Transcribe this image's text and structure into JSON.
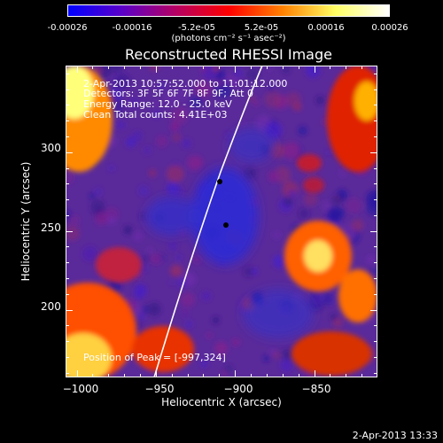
{
  "colorbar": {
    "tick_labels": [
      "-0.00026",
      "-0.00016",
      "-5.2e-05",
      "5.2e-05",
      "0.00016",
      "0.00026"
    ],
    "unit_label": "(photons cm⁻² s⁻¹ asec⁻²)",
    "colors": [
      "#0000ff",
      "#5a00c8",
      "#b40064",
      "#ff0000",
      "#ff8000",
      "#ffff64",
      "#ffffff"
    ]
  },
  "image": {
    "title": "Reconstructed RHESSI Image",
    "info_lines": [
      "2-Apr-2013 10:57:52.000 to 11:01:12.000",
      "Detectors: 3F 5F 6F 7F 8F 9F; Att 0",
      "Energy Range: 12.0 - 25.0 keV",
      "Clean    Total counts: 4.41E+03"
    ],
    "peak_label": "Position of Peak = [-997,324]",
    "peak": {
      "x": -997,
      "y": 324
    }
  },
  "axes": {
    "xlabel": "Heliocentric X (arcsec)",
    "ylabel": "Heliocentric Y (arcsec)",
    "xticks": [
      -1000,
      -950,
      -900,
      -850
    ],
    "xtick_labels": [
      "−1000",
      "−950",
      "−900",
      "−850"
    ],
    "yticks": [
      200,
      250,
      300
    ],
    "ytick_labels": [
      "200",
      "250",
      "300"
    ],
    "xlim": [
      -1007,
      -810
    ],
    "ylim": [
      157,
      355
    ]
  },
  "footer": {
    "timestamp": "2-Apr-2013 13:33"
  }
}
